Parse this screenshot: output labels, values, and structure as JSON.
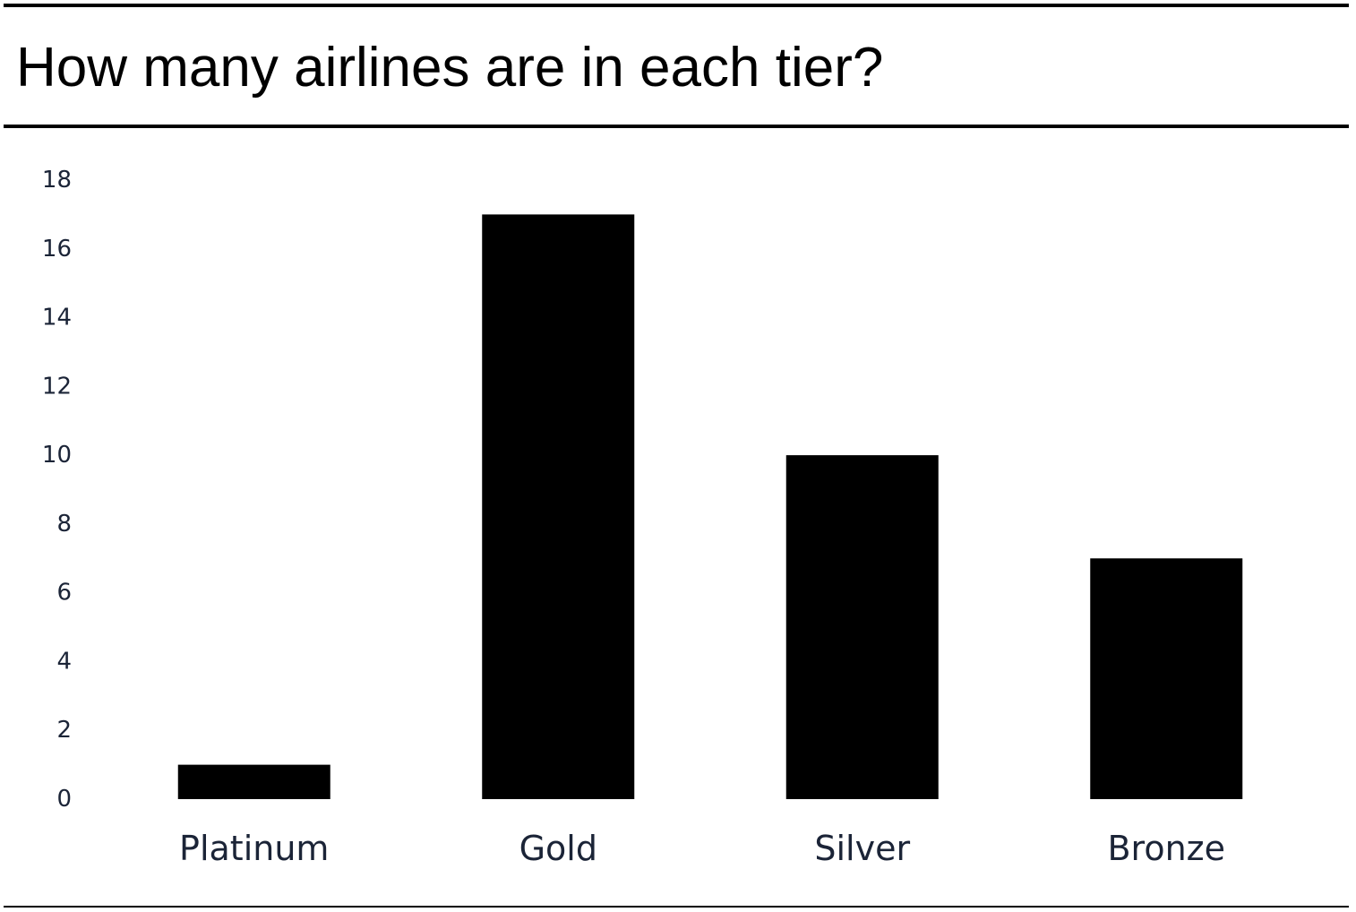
{
  "title": "How many airlines are in each tier?",
  "colors": {
    "bar": "#000000",
    "text": "#1b2437",
    "rule": "#000000"
  },
  "chart_data": {
    "type": "bar",
    "title": "How many airlines are in each tier?",
    "xlabel": "",
    "ylabel": "",
    "categories": [
      "Platinum",
      "Gold",
      "Silver",
      "Bronze"
    ],
    "values": [
      1,
      17,
      10,
      7
    ],
    "ylim": [
      0,
      18
    ],
    "yticks": [
      0,
      2,
      4,
      6,
      8,
      10,
      12,
      14,
      16,
      18
    ],
    "grid": false,
    "legend": "none"
  }
}
